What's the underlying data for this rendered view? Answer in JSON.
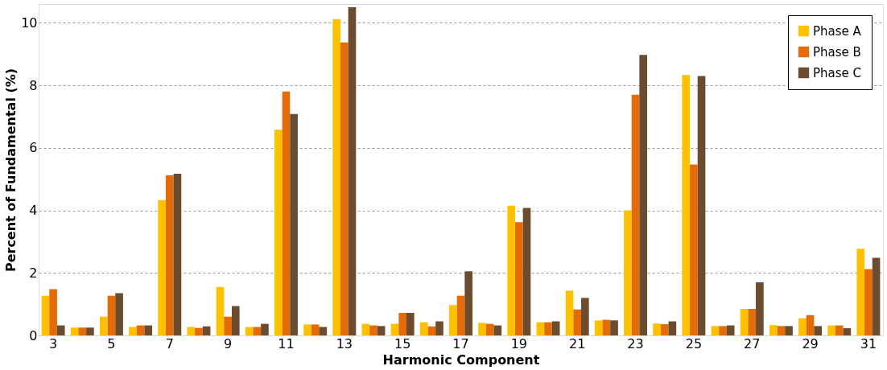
{
  "chart_data": {
    "type": "bar",
    "xlabel": "Harmonic Component",
    "ylabel": "Percent of Fundamental (%)",
    "categories": [
      "3",
      null,
      "5",
      null,
      "7",
      null,
      "9",
      null,
      "11",
      null,
      "13",
      null,
      "15",
      null,
      "17",
      null,
      "19",
      null,
      "21",
      null,
      "23",
      null,
      "25",
      null,
      "27",
      null,
      "29",
      null,
      "31"
    ],
    "series": [
      {
        "name": "Phase A",
        "color": "#ffc000",
        "values": [
          1.27,
          0.25,
          0.6,
          0.27,
          4.33,
          0.27,
          1.55,
          0.27,
          6.58,
          0.35,
          10.12,
          0.37,
          0.37,
          0.42,
          0.97,
          0.4,
          4.15,
          0.42,
          1.43,
          0.48,
          4.0,
          0.38,
          8.33,
          0.3,
          0.85,
          0.33,
          0.55,
          0.32,
          2.77
        ]
      },
      {
        "name": "Phase B",
        "color": "#e36c09",
        "values": [
          1.48,
          0.25,
          1.27,
          0.32,
          5.12,
          0.24,
          0.6,
          0.27,
          7.8,
          0.35,
          9.37,
          0.32,
          0.72,
          0.29,
          1.27,
          0.37,
          3.62,
          0.42,
          0.83,
          0.5,
          7.7,
          0.36,
          5.47,
          0.3,
          0.85,
          0.3,
          0.65,
          0.32,
          2.12
        ]
      },
      {
        "name": "Phase C",
        "color": "#6b4c2e",
        "values": [
          0.32,
          0.25,
          1.35,
          0.32,
          5.17,
          0.29,
          0.94,
          0.37,
          7.08,
          0.27,
          10.5,
          0.3,
          0.72,
          0.45,
          2.05,
          0.32,
          4.08,
          0.45,
          1.2,
          0.48,
          8.97,
          0.45,
          8.3,
          0.32,
          1.7,
          0.3,
          0.3,
          0.23,
          2.48
        ]
      }
    ],
    "ylim": [
      0,
      10.6
    ],
    "yticks": [
      0,
      2,
      4,
      6,
      8,
      10
    ],
    "grid": "y",
    "legend": "top right"
  }
}
